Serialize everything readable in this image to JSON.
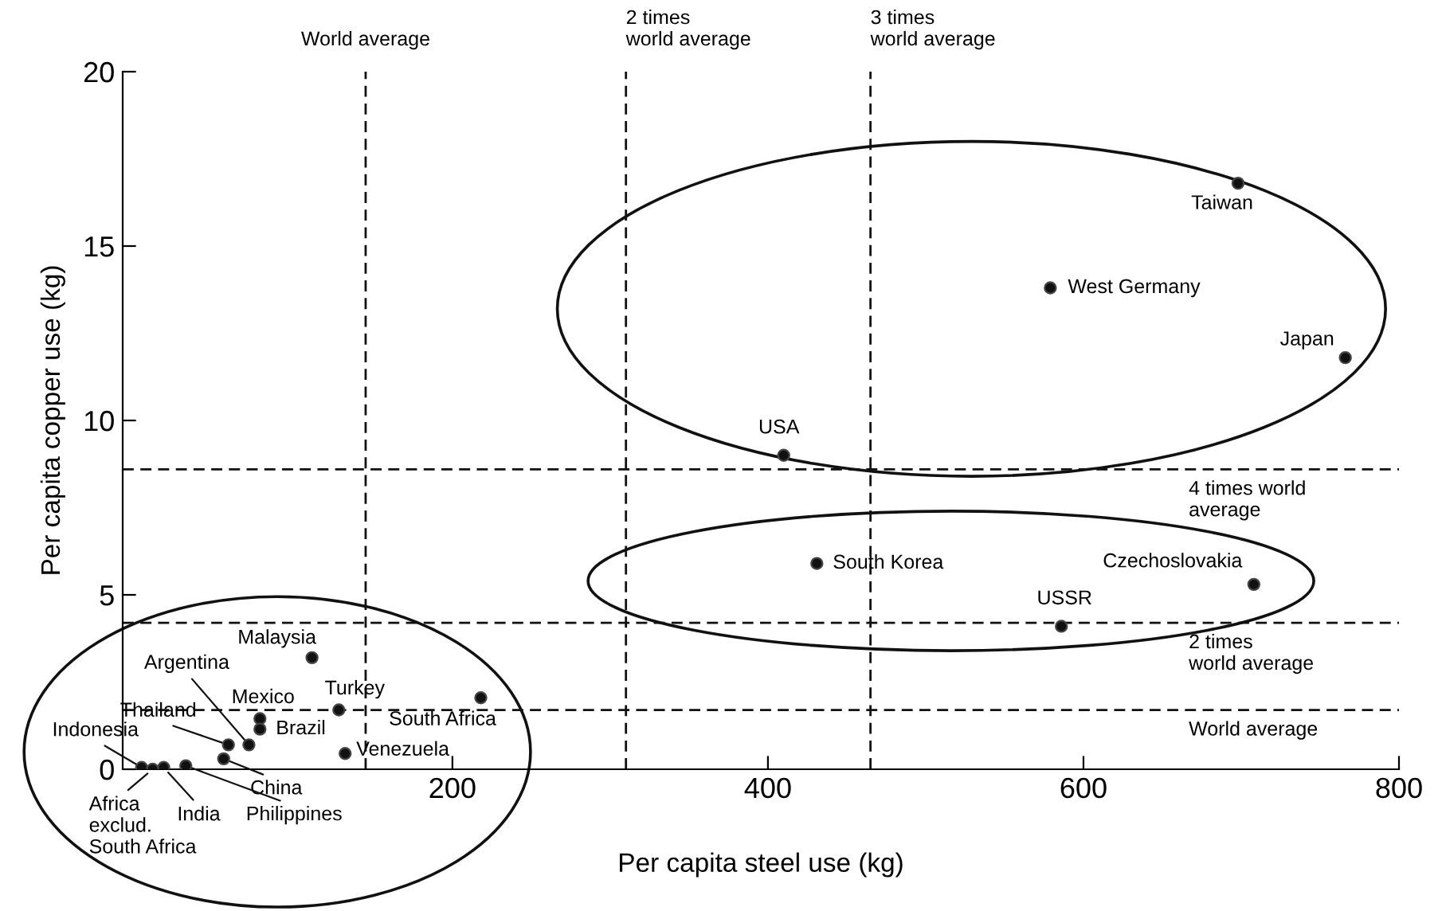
{
  "chart_data": {
    "type": "scatter",
    "xlabel": "Per capita steel use (kg)",
    "ylabel": "Per capita copper use (kg)",
    "series": [
      {
        "color": "#111111",
        "x": [
          698,
          579,
          766,
          410,
          431,
          708,
          586,
          111,
          218,
          128,
          78,
          78,
          71,
          58,
          55,
          132,
          31,
          17,
          10,
          3
        ],
        "values": [
          16.8,
          13.8,
          11.8,
          9.0,
          5.9,
          5.3,
          4.1,
          3.2,
          2.05,
          1.7,
          1.45,
          1.15,
          0.7,
          0.7,
          0.3,
          0.45,
          0.1,
          0.05,
          0,
          0.05
        ]
      }
    ],
    "marker": "circle",
    "xlim": [
      -9,
      800
    ],
    "xticks": [
      200,
      400,
      600,
      800
    ],
    "ylim": [
      0,
      20
    ],
    "yticks": [
      0,
      5,
      10,
      15,
      20
    ],
    "grid": false,
    "legend": false,
    "ref_lines": [
      {
        "axis": "x",
        "value": 145,
        "label": "World average",
        "line_style": "dashed",
        "color": "#111111"
      },
      {
        "axis": "x",
        "value": 310,
        "label": "2 times\nworld average",
        "line_style": "dashed",
        "color": "#111111"
      },
      {
        "axis": "x",
        "value": 465,
        "label": "3 times\nworld average",
        "line_style": "dashed",
        "color": "#111111"
      },
      {
        "axis": "y",
        "value": 8.6,
        "label": "4 times world\naverage",
        "line_style": "dashed",
        "color": "#111111"
      },
      {
        "axis": "y",
        "value": 4.2,
        "label": "2 times\nworld average",
        "line_style": "dashed",
        "color": "#111111"
      },
      {
        "axis": "y",
        "value": 1.7,
        "label": "World average",
        "line_style": "dashed",
        "color": "#111111"
      }
    ],
    "annotations": [
      {
        "text": "Taiwan",
        "x": 698,
        "y": 16.8
      },
      {
        "text": "West Germany",
        "x": 579,
        "y": 13.8
      },
      {
        "text": "Japan",
        "x": 766,
        "y": 11.8
      },
      {
        "text": "USA",
        "x": 410,
        "y": 9.0
      },
      {
        "text": "South Korea",
        "x": 431,
        "y": 5.9
      },
      {
        "text": "Czechoslovakia",
        "x": 708,
        "y": 5.3
      },
      {
        "text": "USSR",
        "x": 586,
        "y": 4.1
      },
      {
        "text": "Malaysia",
        "x": 111,
        "y": 3.2
      },
      {
        "text": "South Africa",
        "x": 218,
        "y": 2.05
      },
      {
        "text": "Turkey",
        "x": 128,
        "y": 1.7
      },
      {
        "text": "Mexico",
        "x": 78,
        "y": 1.45
      },
      {
        "text": "Brazil",
        "x": 78,
        "y": 1.15
      },
      {
        "text": "Argentina",
        "x": 71,
        "y": 0.7
      },
      {
        "text": "Thailand",
        "x": 58,
        "y": 0.7
      },
      {
        "text": "China",
        "x": 55,
        "y": 0.3
      },
      {
        "text": "Venezuela",
        "x": 132,
        "y": 0.45
      },
      {
        "text": "Philippines",
        "x": 31,
        "y": 0.1
      },
      {
        "text": "India",
        "x": 17,
        "y": 0.05
      },
      {
        "text": "Africa\nexclud.\nSouth Africa",
        "x": 10,
        "y": 0
      },
      {
        "text": "Indonesia",
        "x": 3,
        "y": 0.05
      }
    ]
  }
}
